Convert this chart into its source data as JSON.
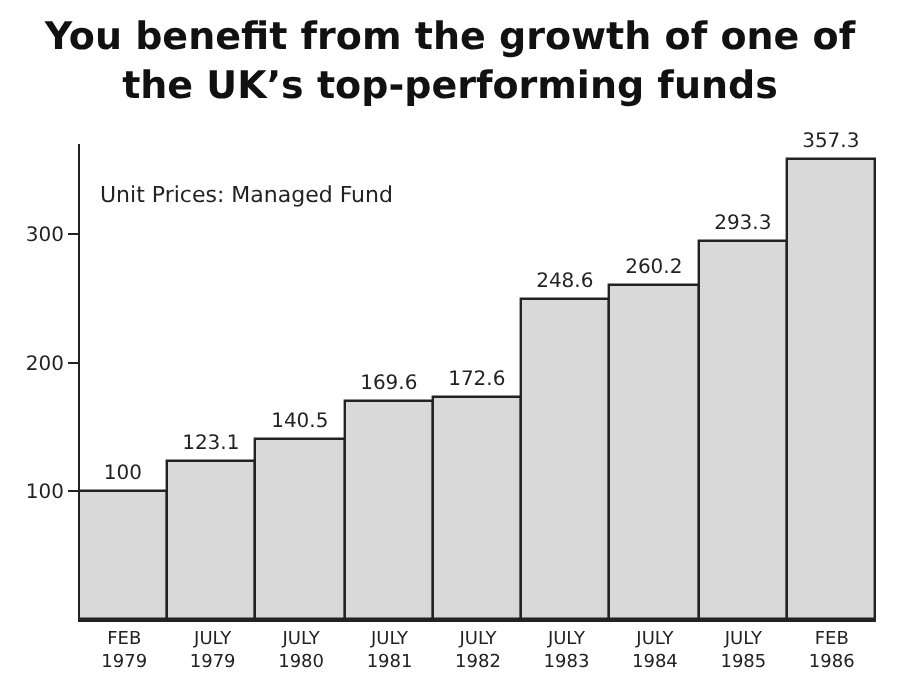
{
  "chart_data": {
    "type": "bar",
    "title": "You benefit from the growth of one of the UK’s top-performing funds",
    "annotations": [
      "Unit Prices: Managed Fund"
    ],
    "categories": [
      "FEB 1979",
      "JULY 1979",
      "JULY 1980",
      "JULY 1981",
      "JULY 1982",
      "JULY 1983",
      "JULY 1984",
      "JULY 1985",
      "FEB 1986"
    ],
    "values": [
      100,
      123.1,
      140.5,
      169.6,
      172.6,
      248.6,
      260.2,
      293.3,
      357.3
    ],
    "color": "#d9d9d9",
    "ylim": [
      0,
      370
    ],
    "yticks": [
      100,
      200,
      300
    ],
    "data_labels": true,
    "grid": false,
    "legend": false
  }
}
